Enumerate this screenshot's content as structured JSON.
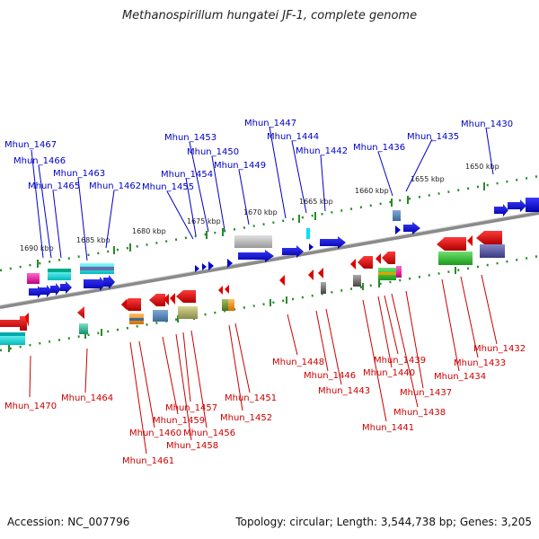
{
  "title": "Methanospirillum hungatei JF-1, complete genome",
  "footer": {
    "accession": "Accession: NC_007796",
    "summary": "Topology: circular; Length: 3,544,738 bp; Genes: 3,205"
  },
  "colors": {
    "top_label": "#0000c8",
    "bottom_label": "#cc0000",
    "ruler": "#2a8a2a",
    "backbone": "#888888"
  },
  "ticks": [
    "1690 kbp",
    "1685 kbp",
    "1680 kbp",
    "1675 kbp",
    "1670 kbp",
    "1665 kbp",
    "1660 kbp",
    "1655 kbp",
    "1650 kbp"
  ],
  "top_genes": [
    "Mhun_1467",
    "Mhun_1466",
    "Mhun_1465",
    "Mhun_1463",
    "Mhun_1462",
    "Mhun_1455",
    "Mhun_1454",
    "Mhun_1453",
    "Mhun_1450",
    "Mhun_1449",
    "Mhun_1447",
    "Mhun_1444",
    "Mhun_1442",
    "Mhun_1436",
    "Mhun_1435",
    "Mhun_1430"
  ],
  "bottom_genes": [
    "Mhun_1470",
    "Mhun_1464",
    "Mhun_1461",
    "Mhun_1460",
    "Mhun_1459",
    "Mhun_1458",
    "Mhun_1457",
    "Mhun_1456",
    "Mhun_1452",
    "Mhun_1451",
    "Mhun_1448",
    "Mhun_1446",
    "Mhun_1443",
    "Mhun_1441",
    "Mhun_1440",
    "Mhun_1439",
    "Mhun_1438",
    "Mhun_1437",
    "Mhun_1434",
    "Mhun_1433",
    "Mhun_1432"
  ]
}
